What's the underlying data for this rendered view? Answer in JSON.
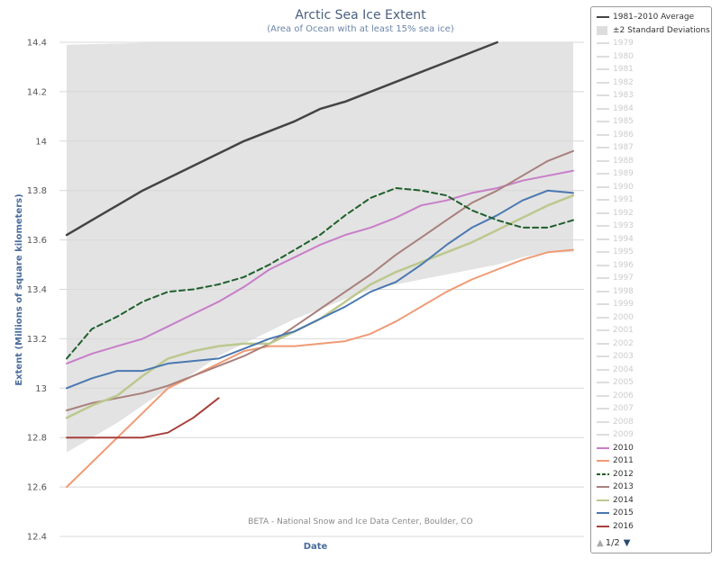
{
  "chart_data": {
    "type": "line",
    "title": "Arctic Sea Ice Extent",
    "subtitle": "(Area of Ocean with at least 15% sea ice)",
    "xlabel": "Date",
    "ylabel": "Extent (Millions of square kilometers)",
    "credit": "BETA - National Snow and Ice Data Center, Boulder, CO",
    "ylim": [
      12.4,
      14.4
    ],
    "yticks": [
      "14.4",
      "14.2",
      "14",
      "13.8",
      "13.6",
      "13.4",
      "13.2",
      "13",
      "12.8",
      "12.6",
      "12.4"
    ],
    "grid": true,
    "legend_position": "right",
    "band": {
      "name": "±2 Standard Deviations",
      "color": "#e3e3e3",
      "upper": [
        [
          0,
          14.39
        ],
        [
          20,
          14.4
        ],
        [
          40,
          14.4
        ],
        [
          60,
          14.4
        ],
        [
          80,
          14.4
        ],
        [
          100,
          14.4
        ]
      ],
      "lower": [
        [
          0,
          12.74
        ],
        [
          5,
          12.8
        ],
        [
          10,
          12.86
        ],
        [
          15,
          12.93
        ],
        [
          20,
          13.0
        ],
        [
          25,
          13.06
        ],
        [
          30,
          13.13
        ],
        [
          35,
          13.18
        ],
        [
          40,
          13.23
        ],
        [
          45,
          13.28
        ],
        [
          50,
          13.32
        ],
        [
          55,
          13.36
        ],
        [
          60,
          13.4
        ],
        [
          65,
          13.42
        ],
        [
          70,
          13.44
        ],
        [
          75,
          13.46
        ],
        [
          80,
          13.48
        ],
        [
          85,
          13.5
        ],
        [
          90,
          13.53
        ],
        [
          95,
          13.55
        ],
        [
          100,
          13.55
        ]
      ]
    },
    "series": [
      {
        "name": "1981–2010 Average",
        "color": "#444444",
        "width": 2.5,
        "dash": "",
        "points": [
          [
            0,
            13.62
          ],
          [
            5,
            13.68
          ],
          [
            10,
            13.74
          ],
          [
            15,
            13.8
          ],
          [
            20,
            13.85
          ],
          [
            25,
            13.9
          ],
          [
            30,
            13.95
          ],
          [
            35,
            14.0
          ],
          [
            40,
            14.04
          ],
          [
            45,
            14.08
          ],
          [
            50,
            14.13
          ],
          [
            55,
            14.16
          ],
          [
            60,
            14.2
          ],
          [
            65,
            14.24
          ],
          [
            70,
            14.28
          ],
          [
            75,
            14.32
          ],
          [
            80,
            14.36
          ],
          [
            85,
            14.4
          ]
        ]
      },
      {
        "name": "2010",
        "color": "#c87ec8",
        "width": 2,
        "dash": "",
        "points": [
          [
            0,
            13.1
          ],
          [
            5,
            13.14
          ],
          [
            10,
            13.17
          ],
          [
            15,
            13.2
          ],
          [
            20,
            13.25
          ],
          [
            25,
            13.3
          ],
          [
            30,
            13.35
          ],
          [
            35,
            13.41
          ],
          [
            40,
            13.48
          ],
          [
            45,
            13.53
          ],
          [
            50,
            13.58
          ],
          [
            55,
            13.62
          ],
          [
            60,
            13.65
          ],
          [
            65,
            13.69
          ],
          [
            70,
            13.74
          ],
          [
            75,
            13.76
          ],
          [
            80,
            13.79
          ],
          [
            85,
            13.81
          ],
          [
            90,
            13.84
          ],
          [
            95,
            13.86
          ],
          [
            100,
            13.88
          ]
        ]
      },
      {
        "name": "2011",
        "color": "#f09a74",
        "width": 2,
        "dash": "",
        "points": [
          [
            0,
            12.6
          ],
          [
            5,
            12.7
          ],
          [
            10,
            12.8
          ],
          [
            15,
            12.9
          ],
          [
            20,
            13.0
          ],
          [
            25,
            13.05
          ],
          [
            30,
            13.1
          ],
          [
            35,
            13.15
          ],
          [
            40,
            13.17
          ],
          [
            45,
            13.17
          ],
          [
            50,
            13.18
          ],
          [
            55,
            13.19
          ],
          [
            60,
            13.22
          ],
          [
            65,
            13.27
          ],
          [
            70,
            13.33
          ],
          [
            75,
            13.39
          ],
          [
            80,
            13.44
          ],
          [
            85,
            13.48
          ],
          [
            90,
            13.52
          ],
          [
            95,
            13.55
          ],
          [
            100,
            13.56
          ]
        ]
      },
      {
        "name": "2012",
        "color": "#1f5f2c",
        "width": 2,
        "dash": "6,4",
        "points": [
          [
            0,
            13.12
          ],
          [
            5,
            13.24
          ],
          [
            10,
            13.29
          ],
          [
            15,
            13.35
          ],
          [
            20,
            13.39
          ],
          [
            25,
            13.4
          ],
          [
            30,
            13.42
          ],
          [
            35,
            13.45
          ],
          [
            40,
            13.5
          ],
          [
            45,
            13.56
          ],
          [
            50,
            13.62
          ],
          [
            55,
            13.7
          ],
          [
            60,
            13.77
          ],
          [
            65,
            13.81
          ],
          [
            70,
            13.8
          ],
          [
            75,
            13.78
          ],
          [
            80,
            13.72
          ],
          [
            85,
            13.68
          ],
          [
            90,
            13.65
          ],
          [
            95,
            13.65
          ],
          [
            100,
            13.68
          ]
        ]
      },
      {
        "name": "2013",
        "color": "#a8807c",
        "width": 2,
        "dash": "",
        "points": [
          [
            0,
            12.91
          ],
          [
            5,
            12.94
          ],
          [
            10,
            12.96
          ],
          [
            15,
            12.98
          ],
          [
            20,
            13.01
          ],
          [
            25,
            13.05
          ],
          [
            30,
            13.09
          ],
          [
            35,
            13.13
          ],
          [
            40,
            13.18
          ],
          [
            45,
            13.25
          ],
          [
            50,
            13.32
          ],
          [
            55,
            13.39
          ],
          [
            60,
            13.46
          ],
          [
            65,
            13.54
          ],
          [
            70,
            13.61
          ],
          [
            75,
            13.68
          ],
          [
            80,
            13.75
          ],
          [
            85,
            13.8
          ],
          [
            90,
            13.86
          ],
          [
            95,
            13.92
          ],
          [
            100,
            13.96
          ]
        ]
      },
      {
        "name": "2014",
        "color": "#bcc88e",
        "width": 2.5,
        "dash": "",
        "points": [
          [
            0,
            12.88
          ],
          [
            5,
            12.93
          ],
          [
            10,
            12.97
          ],
          [
            15,
            13.05
          ],
          [
            20,
            13.12
          ],
          [
            25,
            13.15
          ],
          [
            30,
            13.17
          ],
          [
            35,
            13.18
          ],
          [
            40,
            13.18
          ],
          [
            45,
            13.23
          ],
          [
            50,
            13.28
          ],
          [
            55,
            13.35
          ],
          [
            60,
            13.42
          ],
          [
            65,
            13.47
          ],
          [
            70,
            13.51
          ],
          [
            75,
            13.55
          ],
          [
            80,
            13.59
          ],
          [
            85,
            13.64
          ],
          [
            90,
            13.69
          ],
          [
            95,
            13.74
          ],
          [
            100,
            13.78
          ]
        ]
      },
      {
        "name": "2015",
        "color": "#4a78b0",
        "width": 2,
        "dash": "",
        "points": [
          [
            0,
            13.0
          ],
          [
            5,
            13.04
          ],
          [
            10,
            13.07
          ],
          [
            15,
            13.07
          ],
          [
            20,
            13.1
          ],
          [
            25,
            13.11
          ],
          [
            30,
            13.12
          ],
          [
            35,
            13.16
          ],
          [
            40,
            13.2
          ],
          [
            45,
            13.23
          ],
          [
            50,
            13.28
          ],
          [
            55,
            13.33
          ],
          [
            60,
            13.39
          ],
          [
            65,
            13.43
          ],
          [
            70,
            13.5
          ],
          [
            75,
            13.58
          ],
          [
            80,
            13.65
          ],
          [
            85,
            13.7
          ],
          [
            90,
            13.76
          ],
          [
            95,
            13.8
          ],
          [
            100,
            13.79
          ]
        ]
      },
      {
        "name": "2016",
        "color": "#a8403c",
        "width": 2,
        "dash": "",
        "points": [
          [
            0,
            12.8
          ],
          [
            5,
            12.8
          ],
          [
            10,
            12.8
          ],
          [
            15,
            12.8
          ],
          [
            20,
            12.82
          ],
          [
            25,
            12.88
          ],
          [
            30,
            12.96
          ]
        ]
      }
    ]
  },
  "legend": {
    "items": [
      {
        "label": "1981–2010 Average",
        "active": true,
        "type": "line",
        "color": "#444444"
      },
      {
        "label": "±2 Standard Deviations",
        "active": true,
        "type": "box",
        "color": "#dddddd"
      },
      {
        "label": "1979",
        "active": false
      },
      {
        "label": "1980",
        "active": false
      },
      {
        "label": "1981",
        "active": false
      },
      {
        "label": "1982",
        "active": false
      },
      {
        "label": "1983",
        "active": false
      },
      {
        "label": "1984",
        "active": false
      },
      {
        "label": "1985",
        "active": false
      },
      {
        "label": "1986",
        "active": false
      },
      {
        "label": "1987",
        "active": false
      },
      {
        "label": "1988",
        "active": false
      },
      {
        "label": "1989",
        "active": false
      },
      {
        "label": "1990",
        "active": false
      },
      {
        "label": "1991",
        "active": false
      },
      {
        "label": "1992",
        "active": false
      },
      {
        "label": "1993",
        "active": false
      },
      {
        "label": "1994",
        "active": false
      },
      {
        "label": "1995",
        "active": false
      },
      {
        "label": "1996",
        "active": false
      },
      {
        "label": "1997",
        "active": false
      },
      {
        "label": "1998",
        "active": false
      },
      {
        "label": "1999",
        "active": false
      },
      {
        "label": "2000",
        "active": false
      },
      {
        "label": "2001",
        "active": false
      },
      {
        "label": "2002",
        "active": false
      },
      {
        "label": "2003",
        "active": false
      },
      {
        "label": "2004",
        "active": false
      },
      {
        "label": "2005",
        "active": false
      },
      {
        "label": "2006",
        "active": false
      },
      {
        "label": "2007",
        "active": false
      },
      {
        "label": "2008",
        "active": false
      },
      {
        "label": "2009",
        "active": false
      },
      {
        "label": "2010",
        "active": true,
        "type": "line",
        "color": "#c87ec8"
      },
      {
        "label": "2011",
        "active": true,
        "type": "line",
        "color": "#f09a74"
      },
      {
        "label": "2012",
        "active": true,
        "type": "dash",
        "color": "#1f5f2c"
      },
      {
        "label": "2013",
        "active": true,
        "type": "line",
        "color": "#a8807c"
      },
      {
        "label": "2014",
        "active": true,
        "type": "line",
        "color": "#bcc88e"
      },
      {
        "label": "2015",
        "active": true,
        "type": "line",
        "color": "#4a78b0"
      },
      {
        "label": "2016",
        "active": true,
        "type": "line",
        "color": "#a8403c"
      }
    ],
    "page_indicator": "1/2",
    "up_icon": "triangle-up-icon",
    "down_icon": "triangle-down-icon"
  }
}
